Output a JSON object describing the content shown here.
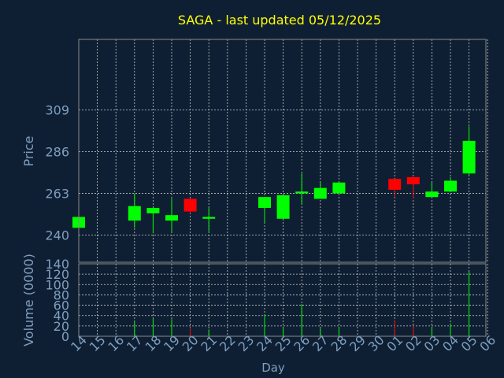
{
  "chart_data": {
    "type": "candlestick",
    "title": "SAGA - last updated 05/12/2025",
    "xlabel": "Day",
    "price_panel": {
      "ylabel": "Price",
      "yticks": [
        240,
        263,
        286,
        309
      ],
      "ylim": [
        225,
        348
      ]
    },
    "volume_panel": {
      "ylabel": "Volume (0000)",
      "yticks": [
        0,
        20,
        40,
        60,
        80,
        100,
        120,
        140
      ],
      "ylim": [
        0,
        140
      ]
    },
    "x_labels": [
      "14",
      "15",
      "16",
      "17",
      "18",
      "19",
      "20",
      "21",
      "22",
      "23",
      "24",
      "25",
      "26",
      "27",
      "28",
      "29",
      "30",
      "01",
      "02",
      "03",
      "04",
      "05",
      "06"
    ],
    "candles": [
      {
        "day": "14",
        "open": 244,
        "high": 250,
        "low": 244,
        "close": 250,
        "volume": 0
      },
      {
        "day": "17",
        "open": 248,
        "high": 263,
        "low": 244,
        "close": 256,
        "volume": 28
      },
      {
        "day": "18",
        "open": 252,
        "high": 255,
        "low": 241,
        "close": 255,
        "volume": 35
      },
      {
        "day": "19",
        "open": 248,
        "high": 260,
        "low": 242,
        "close": 251,
        "volume": 33
      },
      {
        "day": "20",
        "open": 260,
        "high": 260,
        "low": 252,
        "close": 253,
        "volume": 17
      },
      {
        "day": "21",
        "open": 249,
        "high": 255,
        "low": 242,
        "close": 250,
        "volume": 13
      },
      {
        "day": "24",
        "open": 255,
        "high": 261,
        "low": 247,
        "close": 261,
        "volume": 42
      },
      {
        "day": "25",
        "open": 249,
        "high": 262,
        "low": 249,
        "close": 262,
        "volume": 17
      },
      {
        "day": "26",
        "open": 263,
        "high": 274,
        "low": 257,
        "close": 264,
        "volume": 62
      },
      {
        "day": "27",
        "open": 260,
        "high": 269,
        "low": 260,
        "close": 266,
        "volume": 15
      },
      {
        "day": "28",
        "open": 263,
        "high": 269,
        "low": 263,
        "close": 269,
        "volume": 18
      },
      {
        "day": "01",
        "open": 271,
        "high": 271,
        "low": 261,
        "close": 265,
        "volume": 30
      },
      {
        "day": "02",
        "open": 272,
        "high": 272,
        "low": 260,
        "close": 268,
        "volume": 20
      },
      {
        "day": "03",
        "open": 261,
        "high": 269,
        "low": 261,
        "close": 264,
        "volume": 17
      },
      {
        "day": "04",
        "open": 264,
        "high": 272,
        "low": 264,
        "close": 270,
        "volume": 25
      },
      {
        "day": "05",
        "open": 274,
        "high": 300,
        "low": 273,
        "close": 292,
        "volume": 125
      }
    ],
    "colors": {
      "up": "#00ff00",
      "down": "#ff0000",
      "grid": "#c8c8c8",
      "axis_text": "#7f9fbf",
      "title": "#ffff00",
      "background": "#0f1f33",
      "plot_border": "#8a8a8a"
    },
    "grid": true
  }
}
